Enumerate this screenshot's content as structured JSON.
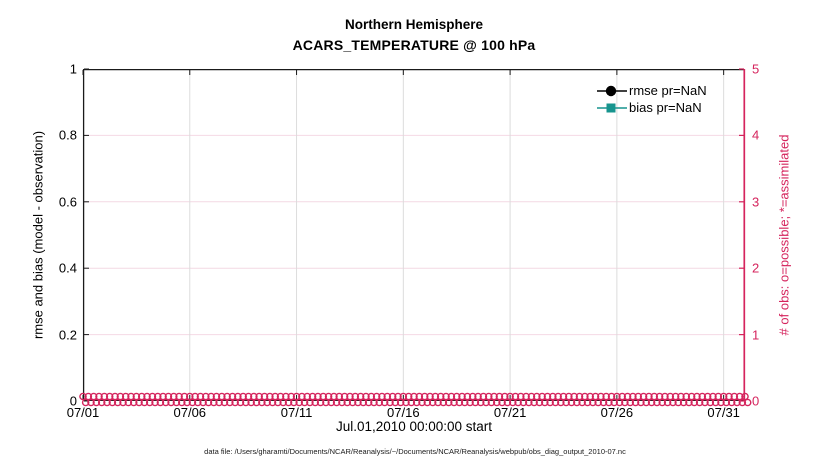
{
  "titles": {
    "line1": "Northern Hemisphere",
    "line2": "ACARS_TEMPERATURE @ 100 hPa"
  },
  "axes": {
    "x": {
      "label": "Jul.01,2010 00:00:00 start"
    },
    "left": {
      "label": "rmse and bias (model - observation)"
    },
    "right": {
      "label": "# of obs: o=possible; *=assimilated"
    }
  },
  "legend": {
    "items": [
      {
        "label": "rmse pr=NaN",
        "color": "#000000",
        "marker": "circle"
      },
      {
        "label": "bias pr=NaN",
        "color": "#17948e",
        "marker": "square"
      }
    ]
  },
  "footer": {
    "text": "data file: /Users/gharamti/Documents/NCAR/Reanalysis/~/Documents/NCAR/Reanalysis/webpub/obs_diag_output_2010-07.nc"
  },
  "chart_data": {
    "type": "line",
    "title": "Northern Hemisphere",
    "subtitle": "ACARS_TEMPERATURE @ 100 hPa",
    "xlabel": "Jul.01,2010 00:00:00 start",
    "ylabel_left": "rmse and bias (model - observation)",
    "ylabel_right": "# of obs: o=possible; *=assimilated",
    "x_tick_labels": [
      "07/01",
      "07/06",
      "07/11",
      "07/16",
      "07/21",
      "07/26",
      "07/31"
    ],
    "x_tick_days": [
      0,
      5,
      10,
      15,
      20,
      25,
      30
    ],
    "xlim_days": [
      0,
      31
    ],
    "ylim_left": [
      0,
      1
    ],
    "y_left_tick_values": [
      0,
      0.2,
      0.4,
      0.6,
      0.8,
      1
    ],
    "y_left_tick_labels": [
      "0",
      "0.2",
      "0.4",
      "0.6",
      "0.8",
      "1"
    ],
    "ylim_right": [
      0,
      5
    ],
    "y_right_tick_values": [
      0,
      1,
      2,
      3,
      4,
      5
    ],
    "y_right_tick_labels": [
      "0",
      "1",
      "2",
      "3",
      "4",
      "5"
    ],
    "grid": true,
    "legend_position": "top-right-inside",
    "series": [
      {
        "name": "rmse pr=NaN",
        "axis": "left",
        "color": "#000000",
        "marker": "filled-circle",
        "values": "NaN at all times (no curve plotted)"
      },
      {
        "name": "bias pr=NaN",
        "axis": "left",
        "color": "#17948e",
        "marker": "filled-square",
        "values": "NaN at all times (no curve plotted)"
      },
      {
        "name": "# of possible obs (o)",
        "axis": "right",
        "color": "#d5245d",
        "marker": "o",
        "constant_value": 0,
        "n_points": 125
      },
      {
        "name": "# of assimilated obs (*)",
        "axis": "right",
        "color": "#d5245d",
        "marker": "*",
        "constant_value": 0,
        "n_points": 125
      }
    ]
  },
  "colors": {
    "accent_pink": "#d5245d",
    "grid_vertical": "#dcdcdc",
    "grid_horizontal": "#f4d9e4",
    "spine_black": "#1a1a1a",
    "teal": "#17948e"
  }
}
